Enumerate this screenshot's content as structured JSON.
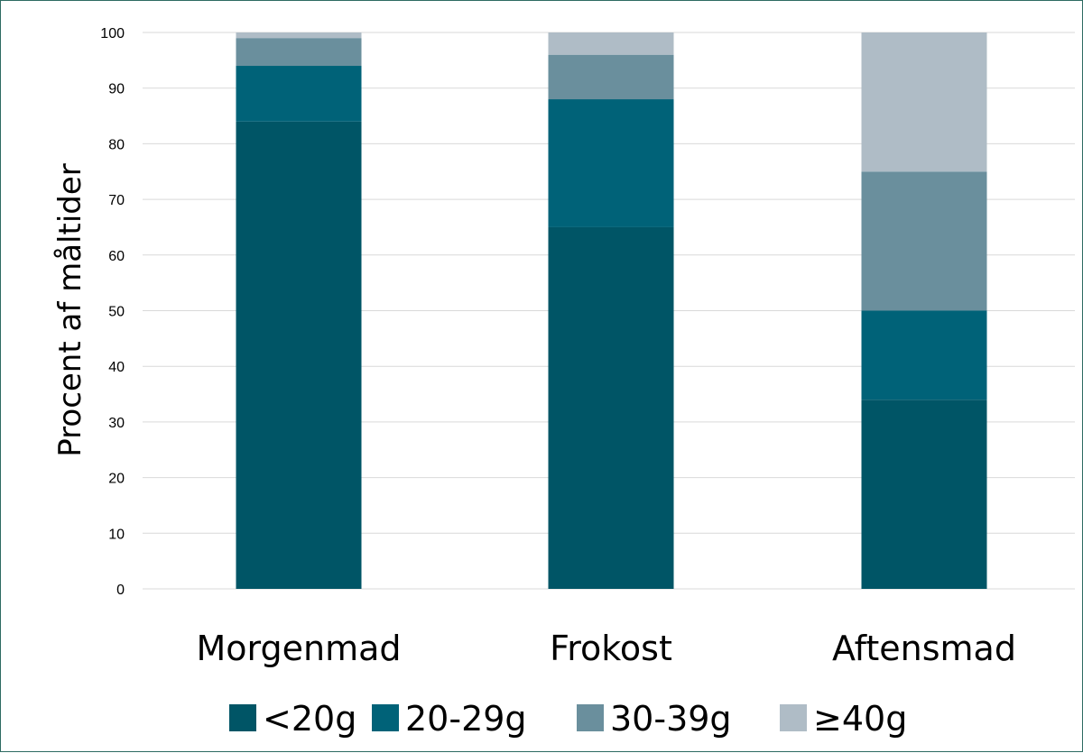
{
  "chart_data": {
    "type": "bar",
    "stacked": true,
    "title": "",
    "xlabel": "",
    "ylabel": "Procent af måltider",
    "ylim": [
      0,
      100
    ],
    "yticks": [
      0,
      10,
      20,
      30,
      40,
      50,
      60,
      70,
      80,
      90,
      100
    ],
    "grid": true,
    "legend_position": "bottom",
    "categories": [
      "Morgenmad",
      "Frokost",
      "Aftensmad"
    ],
    "series": [
      {
        "name": "<20g",
        "color": "#005566",
        "values": [
          84,
          65,
          34
        ]
      },
      {
        "name": "20-29g",
        "color": "#006278",
        "values": [
          10,
          23,
          16
        ]
      },
      {
        "name": "30-39g",
        "color": "#6a8f9d",
        "values": [
          5,
          8,
          25
        ]
      },
      {
        "name": "≥40g",
        "color": "#afbcc6",
        "values": [
          1,
          4,
          25
        ]
      }
    ]
  }
}
